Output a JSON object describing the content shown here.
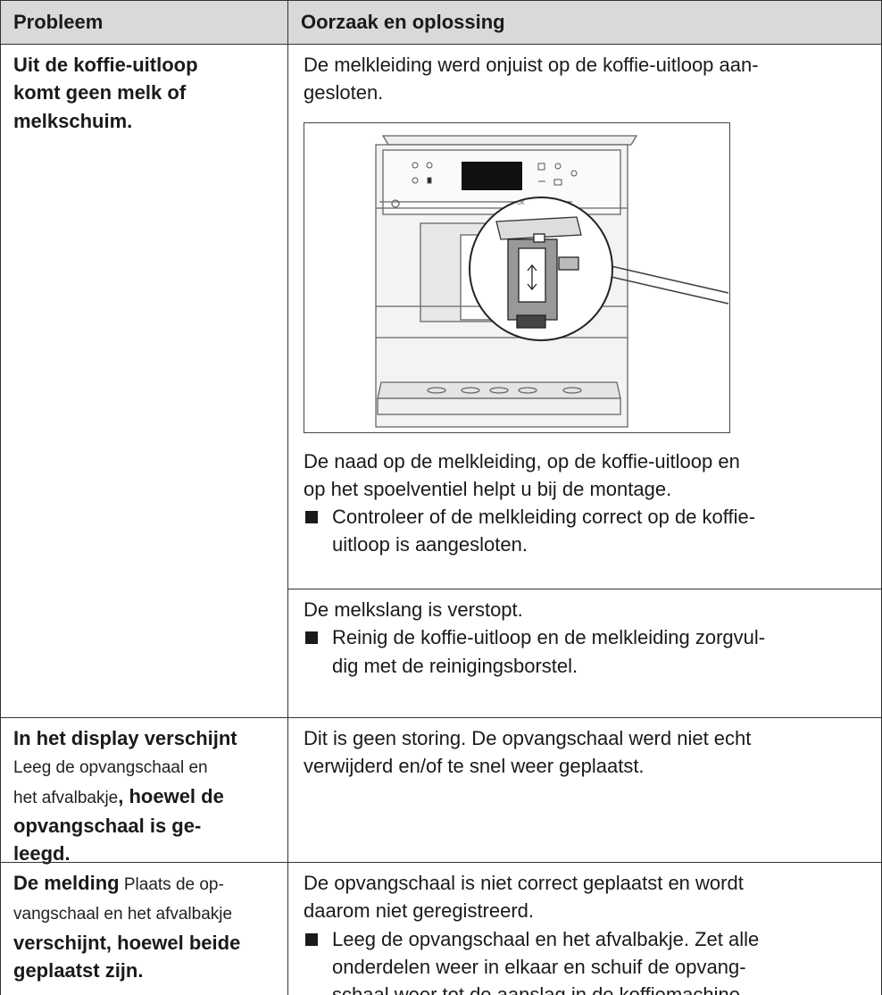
{
  "table": {
    "header": [
      "Probleem",
      "Oorzaak en oplossing"
    ],
    "rows": [
      {
        "problem": [
          [
            {
              "text": "Uit de koffie-uitloop",
              "bold": true
            }
          ],
          [
            {
              "text": "komt geen melk of",
              "bold": true
            }
          ],
          [
            {
              "text": "melkschuim.",
              "bold": true
            }
          ]
        ],
        "causes": [
          {
            "blocks": [
              {
                "text": [
                  "De melkleiding werd onjuist op de koffie-uitloop aan-",
                  "gesloten."
                ]
              },
              {
                "image": {
                  "labels": [
                    "OK"
                  ]
                }
              },
              {
                "text": [
                  "De naad op de melkleiding, op de koffie-uitloop en",
                  "op het spoelventiel helpt u bij de montage."
                ]
              },
              {
                "bullet": [
                  "Controleer of de melkleiding correct op de koffie-",
                  "uitloop is aangesloten."
                ]
              }
            ]
          },
          {
            "blocks": [
              {
                "text": [
                  "De melkslang is verstopt."
                ]
              },
              {
                "bullet": [
                  "Reinig de koffie-uitloop en de melkleiding zorgvul-",
                  "dig met de reinigingsborstel."
                ]
              }
            ]
          }
        ]
      },
      {
        "problem": [
          [
            {
              "text": "In het display verschijnt",
              "bold": true
            }
          ],
          [
            {
              "text": "Leeg de opvangschaal en",
              "bold": false
            }
          ],
          [
            {
              "text": "het afvalbakje",
              "bold": false
            },
            {
              "text": ", hoewel de",
              "bold": true
            }
          ],
          [
            {
              "text": "opvangschaal is ge-",
              "bold": true
            }
          ],
          [
            {
              "text": "leegd.",
              "bold": true
            }
          ]
        ],
        "causes": [
          {
            "blocks": [
              {
                "text": [
                  "Dit is geen storing. De opvangschaal werd niet echt",
                  "verwijderd en/of te snel weer geplaatst."
                ]
              }
            ]
          }
        ]
      },
      {
        "problem": [
          [
            {
              "text": "De melding",
              "bold": true
            },
            {
              "text": " Plaats de op-",
              "bold": false
            }
          ],
          [
            {
              "text": "vangschaal en het afvalbakje",
              "bold": false
            }
          ],
          [
            {
              "text": "verschijnt, hoewel beide",
              "bold": true
            }
          ],
          [
            {
              "text": "geplaatst zijn.",
              "bold": true
            }
          ]
        ],
        "causes": [
          {
            "blocks": [
              {
                "text": [
                  "De opvangschaal is niet correct geplaatst en wordt",
                  "daarom niet geregistreerd."
                ]
              },
              {
                "bullet": [
                  "Leeg de opvangschaal en het afvalbakje. Zet alle",
                  "onderdelen weer in elkaar en schuif de opvang-",
                  "schaal weer tot de aanslag in de koffiemachine."
                ]
              }
            ]
          }
        ]
      }
    ]
  }
}
